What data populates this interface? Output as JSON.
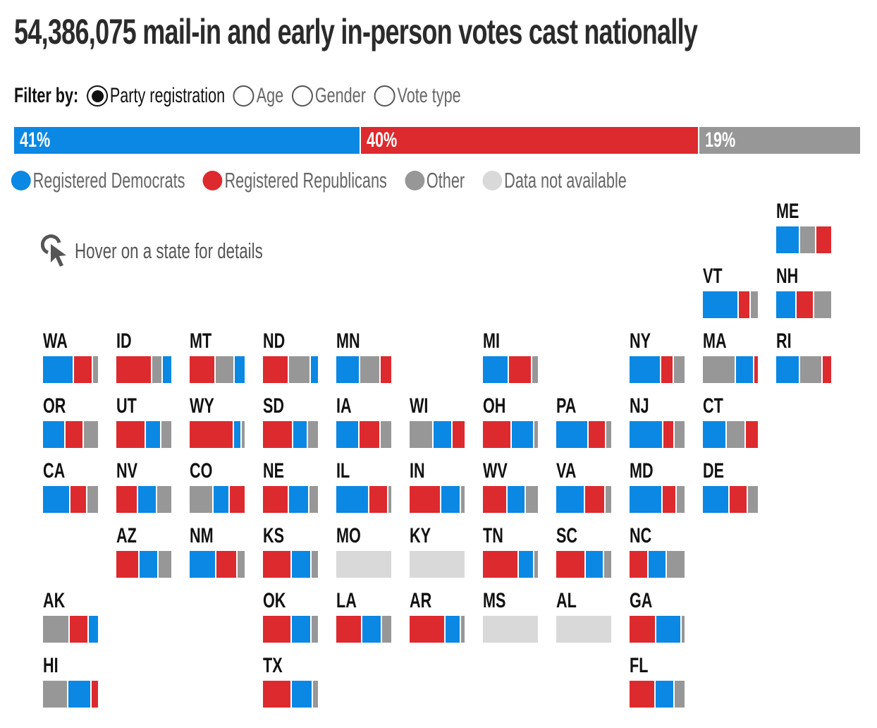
{
  "title": "54,386,075 mail-in and early in-person votes cast nationally",
  "filter": {
    "label": "Filter by:",
    "options": [
      {
        "label": "Party registration",
        "selected": true
      },
      {
        "label": "Age",
        "selected": false
      },
      {
        "label": "Gender",
        "selected": false
      },
      {
        "label": "Vote type",
        "selected": false
      }
    ]
  },
  "colors": {
    "dem": "#0a88e3",
    "rep": "#dd2a2e",
    "other": "#979797",
    "na": "#d9d9d9"
  },
  "hint": {
    "text": "Hover on a state for details",
    "icon": "pointer-click-icon"
  },
  "chart_data": {
    "type": "bar",
    "title": "54,386,075 mail-in and early in-person votes cast nationally",
    "national": {
      "series": [
        {
          "name": "Registered Democrats",
          "key": "dem",
          "value": 41,
          "label": "41%"
        },
        {
          "name": "Registered Republicans",
          "key": "rep",
          "value": 40,
          "label": "40%"
        },
        {
          "name": "Other",
          "key": "other",
          "value": 19,
          "label": "19%"
        }
      ]
    },
    "legend": [
      {
        "name": "Registered Democrats",
        "key": "dem"
      },
      {
        "name": "Registered Republicans",
        "key": "rep"
      },
      {
        "name": "Other",
        "key": "other"
      },
      {
        "name": "Data not available",
        "key": "na"
      }
    ],
    "states": [
      {
        "abbr": "ME",
        "col": 10,
        "row": 0,
        "dem": 43,
        "rep": 27,
        "other": 30
      },
      {
        "abbr": "VT",
        "col": 9,
        "row": 1,
        "dem": 65,
        "rep": 22,
        "other": 13
      },
      {
        "abbr": "NH",
        "col": 10,
        "row": 1,
        "dem": 37,
        "rep": 32,
        "other": 31
      },
      {
        "abbr": "WA",
        "col": 0,
        "row": 2,
        "dem": 56,
        "rep": 35,
        "other": 9
      },
      {
        "abbr": "ID",
        "col": 1,
        "row": 2,
        "dem": 15,
        "rep": 65,
        "other": 20
      },
      {
        "abbr": "MT",
        "col": 2,
        "row": 2,
        "dem": 18,
        "rep": 48,
        "other": 34
      },
      {
        "abbr": "ND",
        "col": 3,
        "row": 2,
        "dem": 13,
        "rep": 48,
        "other": 39
      },
      {
        "abbr": "MN",
        "col": 4,
        "row": 2,
        "dem": 43,
        "rep": 19,
        "other": 38
      },
      {
        "abbr": "MI",
        "col": 6,
        "row": 2,
        "dem": 47,
        "rep": 43,
        "other": 10
      },
      {
        "abbr": "NY",
        "col": 8,
        "row": 2,
        "dem": 58,
        "rep": 23,
        "other": 19
      },
      {
        "abbr": "MA",
        "col": 9,
        "row": 2,
        "dem": 33,
        "rep": 7,
        "other": 60
      },
      {
        "abbr": "RI",
        "col": 10,
        "row": 2,
        "dem": 44,
        "rep": 16,
        "other": 40
      },
      {
        "abbr": "OR",
        "col": 0,
        "row": 3,
        "dem": 41,
        "rep": 33,
        "other": 26
      },
      {
        "abbr": "UT",
        "col": 1,
        "row": 3,
        "dem": 28,
        "rep": 54,
        "other": 18
      },
      {
        "abbr": "WY",
        "col": 2,
        "row": 3,
        "dem": 14,
        "rep": 81,
        "other": 5
      },
      {
        "abbr": "SD",
        "col": 3,
        "row": 3,
        "dem": 27,
        "rep": 55,
        "other": 18
      },
      {
        "abbr": "IA",
        "col": 4,
        "row": 3,
        "dem": 42,
        "rep": 39,
        "other": 19
      },
      {
        "abbr": "WI",
        "col": 5,
        "row": 3,
        "dem": 35,
        "rep": 22,
        "other": 43
      },
      {
        "abbr": "OH",
        "col": 6,
        "row": 3,
        "dem": 41,
        "rep": 52,
        "other": 7
      },
      {
        "abbr": "PA",
        "col": 7,
        "row": 3,
        "dem": 59,
        "rep": 32,
        "other": 9
      },
      {
        "abbr": "NJ",
        "col": 8,
        "row": 3,
        "dem": 62,
        "rep": 20,
        "other": 18
      },
      {
        "abbr": "CT",
        "col": 9,
        "row": 3,
        "dem": 44,
        "rep": 22,
        "other": 34
      },
      {
        "abbr": "CA",
        "col": 0,
        "row": 4,
        "dem": 50,
        "rep": 31,
        "other": 19
      },
      {
        "abbr": "NV",
        "col": 1,
        "row": 4,
        "dem": 35,
        "rep": 40,
        "other": 25
      },
      {
        "abbr": "CO",
        "col": 2,
        "row": 4,
        "dem": 30,
        "rep": 27,
        "other": 43
      },
      {
        "abbr": "NE",
        "col": 3,
        "row": 4,
        "dem": 36,
        "rep": 48,
        "other": 16
      },
      {
        "abbr": "IL",
        "col": 4,
        "row": 4,
        "dem": 60,
        "rep": 35,
        "other": 5
      },
      {
        "abbr": "IN",
        "col": 5,
        "row": 4,
        "dem": 35,
        "rep": 58,
        "other": 7
      },
      {
        "abbr": "WV",
        "col": 6,
        "row": 4,
        "dem": 33,
        "rep": 45,
        "other": 22
      },
      {
        "abbr": "VA",
        "col": 7,
        "row": 4,
        "dem": 52,
        "rep": 38,
        "other": 10
      },
      {
        "abbr": "MD",
        "col": 8,
        "row": 4,
        "dem": 60,
        "rep": 26,
        "other": 14
      },
      {
        "abbr": "DE",
        "col": 9,
        "row": 4,
        "dem": 49,
        "rep": 33,
        "other": 18
      },
      {
        "abbr": "AZ",
        "col": 1,
        "row": 5,
        "dem": 35,
        "rep": 42,
        "other": 23
      },
      {
        "abbr": "NM",
        "col": 2,
        "row": 5,
        "dem": 49,
        "rep": 38,
        "other": 13
      },
      {
        "abbr": "KS",
        "col": 3,
        "row": 5,
        "dem": 36,
        "rep": 52,
        "other": 12
      },
      {
        "abbr": "MO",
        "col": 4,
        "row": 5,
        "na": true
      },
      {
        "abbr": "KY",
        "col": 5,
        "row": 5,
        "na": true
      },
      {
        "abbr": "TN",
        "col": 6,
        "row": 5,
        "dem": 28,
        "rep": 66,
        "other": 6
      },
      {
        "abbr": "SC",
        "col": 7,
        "row": 5,
        "dem": 33,
        "rep": 54,
        "other": 13
      },
      {
        "abbr": "NC",
        "col": 8,
        "row": 5,
        "dem": 34,
        "rep": 34,
        "other": 32,
        "order": [
          "rep",
          "dem",
          "other"
        ]
      },
      {
        "abbr": "AK",
        "col": 0,
        "row": 6,
        "dem": 17,
        "rep": 34,
        "other": 49
      },
      {
        "abbr": "OK",
        "col": 3,
        "row": 6,
        "dem": 37,
        "rep": 52,
        "other": 11
      },
      {
        "abbr": "LA",
        "col": 4,
        "row": 6,
        "dem": 36,
        "rep": 47,
        "other": 17
      },
      {
        "abbr": "AR",
        "col": 5,
        "row": 6,
        "dem": 28,
        "rep": 65,
        "other": 7
      },
      {
        "abbr": "MS",
        "col": 6,
        "row": 6,
        "na": true
      },
      {
        "abbr": "AL",
        "col": 7,
        "row": 6,
        "na": true
      },
      {
        "abbr": "GA",
        "col": 8,
        "row": 6,
        "dem": 46,
        "rep": 49,
        "other": 5
      },
      {
        "abbr": "HI",
        "col": 0,
        "row": 7,
        "dem": 43,
        "rep": 11,
        "other": 46
      },
      {
        "abbr": "TX",
        "col": 3,
        "row": 7,
        "dem": 38,
        "rep": 53,
        "other": 9
      },
      {
        "abbr": "FL",
        "col": 8,
        "row": 7,
        "dem": 35,
        "rep": 47,
        "other": 18
      }
    ]
  }
}
